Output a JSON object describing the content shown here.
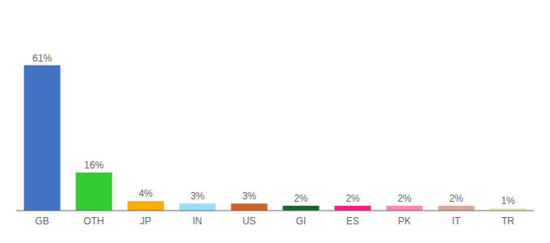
{
  "chart_data": {
    "type": "bar",
    "categories": [
      "GB",
      "OTH",
      "JP",
      "IN",
      "US",
      "GI",
      "ES",
      "PK",
      "IT",
      "TR"
    ],
    "values": [
      61,
      16,
      4,
      3,
      3,
      2,
      2,
      2,
      2,
      1
    ],
    "value_labels": [
      "61%",
      "16%",
      "4%",
      "3%",
      "3%",
      "2%",
      "2%",
      "2%",
      "2%",
      "1%"
    ],
    "colors": [
      "#4472c4",
      "#33cc33",
      "#ffaa00",
      "#99ddff",
      "#cc6622",
      "#1a6622",
      "#ff1a8c",
      "#ff88bb",
      "#ddaa99",
      "#eeeebb"
    ],
    "ylim": [
      0,
      68
    ],
    "data_labels": true,
    "tick_labels": "x",
    "grid": false
  }
}
